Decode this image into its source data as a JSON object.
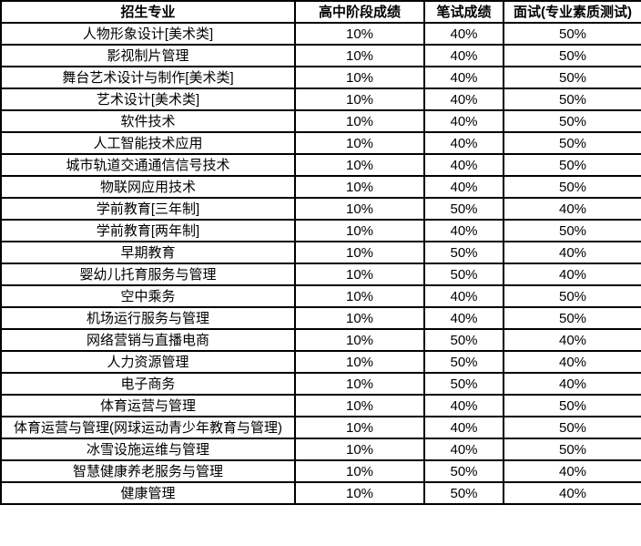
{
  "table": {
    "columns": [
      "招生专业",
      "高中阶段成绩",
      "笔试成绩",
      "面试(专业素质测试)"
    ],
    "rows": [
      [
        "人物形象设计[美术类]",
        "10%",
        "40%",
        "50%"
      ],
      [
        "影视制片管理",
        "10%",
        "40%",
        "50%"
      ],
      [
        "舞台艺术设计与制作[美术类]",
        "10%",
        "40%",
        "50%"
      ],
      [
        "艺术设计[美术类]",
        "10%",
        "40%",
        "50%"
      ],
      [
        "软件技术",
        "10%",
        "40%",
        "50%"
      ],
      [
        "人工智能技术应用",
        "10%",
        "40%",
        "50%"
      ],
      [
        "城市轨道交通通信信号技术",
        "10%",
        "40%",
        "50%"
      ],
      [
        "物联网应用技术",
        "10%",
        "40%",
        "50%"
      ],
      [
        "学前教育[三年制]",
        "10%",
        "50%",
        "40%"
      ],
      [
        "学前教育[两年制]",
        "10%",
        "40%",
        "50%"
      ],
      [
        "早期教育",
        "10%",
        "50%",
        "40%"
      ],
      [
        "婴幼儿托育服务与管理",
        "10%",
        "50%",
        "40%"
      ],
      [
        "空中乘务",
        "10%",
        "40%",
        "50%"
      ],
      [
        "机场运行服务与管理",
        "10%",
        "40%",
        "50%"
      ],
      [
        "网络营销与直播电商",
        "10%",
        "50%",
        "40%"
      ],
      [
        "人力资源管理",
        "10%",
        "50%",
        "40%"
      ],
      [
        "电子商务",
        "10%",
        "50%",
        "40%"
      ],
      [
        "体育运营与管理",
        "10%",
        "40%",
        "50%"
      ],
      [
        "体育运营与管理(网球运动青少年教育与管理)",
        "10%",
        "40%",
        "50%"
      ],
      [
        "冰雪设施运维与管理",
        "10%",
        "40%",
        "50%"
      ],
      [
        "智慧健康养老服务与管理",
        "10%",
        "50%",
        "40%"
      ],
      [
        "健康管理",
        "10%",
        "50%",
        "40%"
      ]
    ]
  },
  "colors": {
    "border": "#000000",
    "text": "#000000",
    "background": "#ffffff"
  }
}
